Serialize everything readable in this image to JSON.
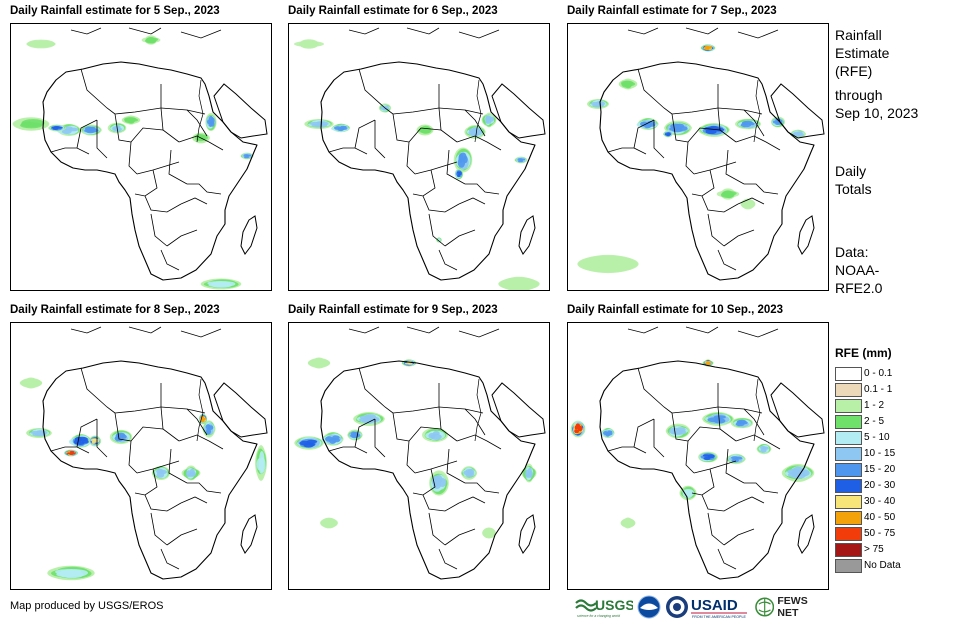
{
  "panels": [
    {
      "title": "Daily Rainfall estimate for 5 Sep., 2023",
      "day": 5
    },
    {
      "title": "Daily Rainfall estimate for 6 Sep., 2023",
      "day": 6
    },
    {
      "title": "Daily Rainfall estimate for 7 Sep., 2023",
      "day": 7
    },
    {
      "title": "Daily Rainfall estimate for 8 Sep., 2023",
      "day": 8
    },
    {
      "title": "Daily Rainfall estimate for 9 Sep., 2023",
      "day": 9
    },
    {
      "title": "Daily Rainfall estimate for 10 Sep., 2023",
      "day": 10
    }
  ],
  "side_info": {
    "title_line1": "Rainfall",
    "title_line2": "Estimate",
    "title_line3": "(RFE)",
    "through_label": "through",
    "through_date": "Sep 10, 2023",
    "totals_line1": "Daily",
    "totals_line2": "Totals",
    "data_line1": "Data:",
    "data_line2": "NOAA-",
    "data_line3": "RFE2.0"
  },
  "legend": {
    "title": "RFE (mm)",
    "items": [
      {
        "label": "0 - 0.1",
        "color": "#ffffff"
      },
      {
        "label": "0.1 - 1",
        "color": "#ecd9b9"
      },
      {
        "label": "1 - 2",
        "color": "#b8f0a8"
      },
      {
        "label": "2 - 5",
        "color": "#6fe06a"
      },
      {
        "label": "5 - 10",
        "color": "#b4ecf4"
      },
      {
        "label": "10 - 15",
        "color": "#8ec8f2"
      },
      {
        "label": "15 - 20",
        "color": "#4f97ee"
      },
      {
        "label": "20 - 30",
        "color": "#1f5fe6"
      },
      {
        "label": "30 - 40",
        "color": "#f7e57a"
      },
      {
        "label": "40 - 50",
        "color": "#f4a20a"
      },
      {
        "label": "50 - 75",
        "color": "#f23c0a"
      },
      {
        "label": "> 75",
        "color": "#a51616"
      },
      {
        "label": "No Data",
        "color": "#999999"
      }
    ]
  },
  "credit": "Map produced by USGS/EROS",
  "logos": {
    "usgs": "USGS",
    "usgs_tagline": "science for a changing world",
    "usaid": "USAID",
    "usaid_tagline": "FROM THE AMERICAN PEOPLE",
    "fewsnet": "FEWS NET"
  }
}
